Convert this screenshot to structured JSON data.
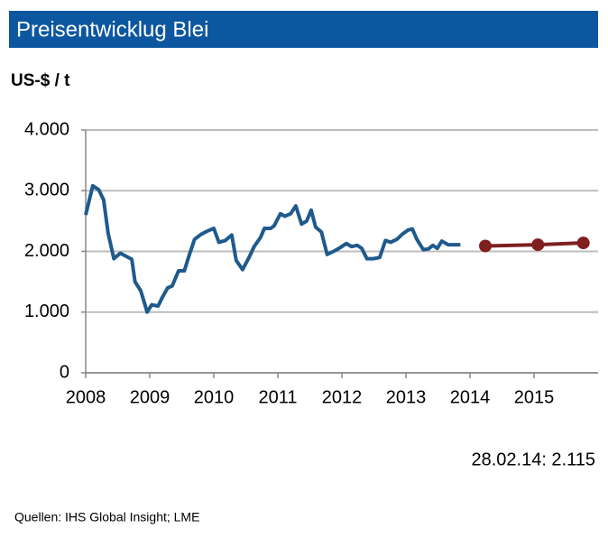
{
  "chart_data": {
    "type": "line",
    "title": "Preisentwicklug Blei",
    "y_label": "US-$ / t",
    "annotation": "28.02.14: 2.115",
    "source": "Quellen: IHS Global Insight; LME",
    "xlim": [
      2008,
      2016
    ],
    "xticks": [
      2008,
      2009,
      2010,
      2011,
      2012,
      2013,
      2014,
      2015
    ],
    "ylim": [
      0,
      4000
    ],
    "yticks": [
      0,
      {
        "value": 1000,
        "label": "1.000"
      },
      {
        "value": 2000,
        "label": "2.000"
      },
      {
        "value": 3000,
        "label": "3.000"
      },
      {
        "value": 4000,
        "label": "4.000"
      }
    ],
    "grid": true,
    "series": [
      {
        "color": "#1f5a8c",
        "markers": false,
        "x": [
          2008.0,
          2008.11,
          2008.2,
          2008.28,
          2008.35,
          2008.44,
          2008.54,
          2008.63,
          2008.72,
          2008.77,
          2008.86,
          2008.96,
          2009.03,
          2009.13,
          2009.2,
          2009.28,
          2009.35,
          2009.45,
          2009.54,
          2009.62,
          2009.7,
          2009.8,
          2009.89,
          2010.0,
          2010.08,
          2010.18,
          2010.28,
          2010.35,
          2010.45,
          2010.55,
          2010.63,
          2010.73,
          2010.79,
          2010.89,
          2010.94,
          2011.04,
          2011.11,
          2011.2,
          2011.28,
          2011.37,
          2011.45,
          2011.52,
          2011.59,
          2011.68,
          2011.77,
          2011.87,
          2011.97,
          2012.07,
          2012.15,
          2012.24,
          2012.31,
          2012.39,
          2012.49,
          2012.59,
          2012.68,
          2012.76,
          2012.86,
          2012.94,
          2013.03,
          2013.1,
          2013.17,
          2013.27,
          2013.35,
          2013.42,
          2013.49,
          2013.56,
          2013.66,
          2013.85
        ],
        "values": [
          2600,
          3080,
          3020,
          2850,
          2300,
          1880,
          1970,
          1920,
          1870,
          1500,
          1350,
          1000,
          1120,
          1100,
          1250,
          1400,
          1430,
          1680,
          1680,
          1950,
          2200,
          2280,
          2330,
          2380,
          2150,
          2180,
          2270,
          1850,
          1700,
          1900,
          2080,
          2230,
          2380,
          2380,
          2420,
          2620,
          2580,
          2620,
          2750,
          2450,
          2500,
          2680,
          2400,
          2320,
          1950,
          2000,
          2060,
          2130,
          2080,
          2100,
          2050,
          1880,
          1880,
          1900,
          2180,
          2150,
          2200,
          2280,
          2350,
          2370,
          2200,
          2030,
          2040,
          2100,
          2050,
          2170,
          2110,
          2110
        ]
      },
      {
        "color": "#7f1f1f",
        "markers": true,
        "x": [
          2014.24,
          2015.06,
          2015.77
        ],
        "values": [
          2090,
          2110,
          2140
        ]
      }
    ]
  }
}
